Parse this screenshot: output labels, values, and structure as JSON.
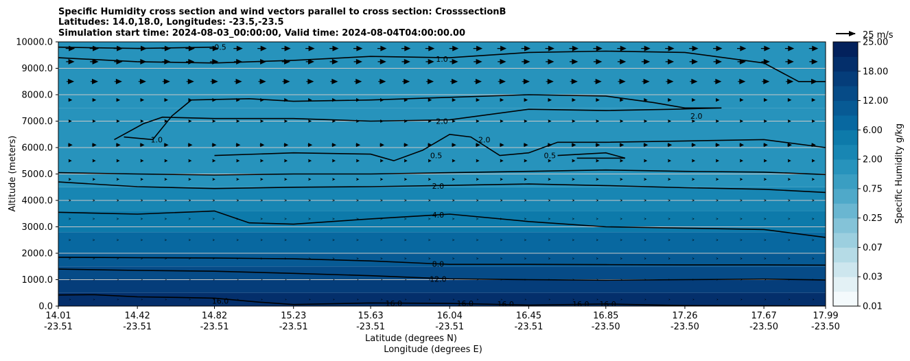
{
  "chart_data": {
    "type": "contourf",
    "title_lines": [
      "Specific Humidity cross section and wind vectors parallel to cross section: CrosssectionB",
      "Latitudes: 14.0,18.0, Longitudes: -23.5,-23.5",
      "Simulation start time: 2024-08-03_00:00:00, Valid time: 2024-08-04T04:00:00.00"
    ],
    "ylabel": "Altitude (meters)",
    "xlabel_lat": "Latitude (degrees N)",
    "xlabel_lon": "Longitude (degrees E)",
    "ylim": [
      0,
      10000
    ],
    "y_ticks": [
      "0.0",
      "1000.0",
      "2000.0",
      "3000.0",
      "4000.0",
      "5000.0",
      "6000.0",
      "7000.0",
      "8000.0",
      "9000.0",
      "10000.0"
    ],
    "x_ticks_lat": [
      "14.01",
      "14.42",
      "14.82",
      "15.23",
      "15.63",
      "16.04",
      "16.45",
      "16.85",
      "17.26",
      "17.67",
      "17.99"
    ],
    "x_ticks_lon": [
      "-23.51",
      "-23.51",
      "-23.51",
      "-23.51",
      "-23.51",
      "-23.51",
      "-23.51",
      "-23.50",
      "-23.50",
      "-23.50",
      "-23.50"
    ],
    "colorbar": {
      "label": "Specific Humidity g/kg",
      "levels": [
        0.01,
        0.02,
        0.03,
        0.05,
        0.07,
        0.1,
        0.25,
        0.5,
        0.75,
        1.0,
        2.0,
        4.0,
        6.0,
        9.0,
        12.0,
        15.0,
        18.0,
        21.0,
        25.0
      ],
      "tick_labels": [
        "0.01",
        "0.03",
        "0.07",
        "0.25",
        "0.75",
        "2.00",
        "6.00",
        "12.00",
        "18.00",
        "25.00"
      ],
      "colors": [
        "#f4fafc",
        "#e3f1f5",
        "#cde6ee",
        "#b5dbe6",
        "#9ccfdf",
        "#84c3d8",
        "#6ab6d1",
        "#4fa9c9",
        "#3a9ec2",
        "#2793bc",
        "#1886b3",
        "#0d7aaa",
        "#0868a0",
        "#075a94",
        "#064b87",
        "#053d7a",
        "#042f6b",
        "#03215c"
      ]
    },
    "humidity_bands": [
      {
        "alt_bottom": 0,
        "alt_top": 500,
        "value": 18.0
      },
      {
        "alt_bottom": 500,
        "alt_top": 1000,
        "value": 15.0
      },
      {
        "alt_bottom": 1000,
        "alt_top": 1500,
        "value": 12.0
      },
      {
        "alt_bottom": 1500,
        "alt_top": 2000,
        "value": 9.0
      },
      {
        "alt_bottom": 2000,
        "alt_top": 2800,
        "value": 6.0
      },
      {
        "alt_bottom": 2800,
        "alt_top": 3600,
        "value": 4.0
      },
      {
        "alt_bottom": 3600,
        "alt_top": 4500,
        "value": 2.5
      },
      {
        "alt_bottom": 4500,
        "alt_top": 7500,
        "value": 1.5
      },
      {
        "alt_bottom": 7500,
        "alt_top": 10000,
        "value": 1.0
      }
    ],
    "contour_lines": [
      {
        "level": "16.0",
        "points": [
          [
            14.01,
            420
          ],
          [
            14.2,
            430
          ],
          [
            14.42,
            350
          ],
          [
            14.62,
            330
          ],
          [
            14.82,
            300
          ],
          [
            15.05,
            150
          ],
          [
            15.23,
            60
          ],
          [
            15.63,
            120
          ],
          [
            16.04,
            100
          ],
          [
            16.45,
            40
          ],
          [
            16.85,
            80
          ],
          [
            17.26,
            20
          ],
          [
            17.67,
            10
          ],
          [
            17.99,
            0
          ]
        ]
      },
      {
        "level": "12.0",
        "points": [
          [
            14.01,
            1400
          ],
          [
            14.42,
            1350
          ],
          [
            14.82,
            1320
          ],
          [
            15.23,
            1240
          ],
          [
            15.63,
            1150
          ],
          [
            16.04,
            1030
          ],
          [
            16.45,
            1000
          ],
          [
            16.85,
            980
          ],
          [
            17.26,
            1000
          ],
          [
            17.67,
            1020
          ],
          [
            17.99,
            990
          ]
        ]
      },
      {
        "level": "8.0",
        "points": [
          [
            14.01,
            1850
          ],
          [
            14.42,
            1830
          ],
          [
            14.82,
            1820
          ],
          [
            15.23,
            1790
          ],
          [
            15.63,
            1710
          ],
          [
            16.04,
            1580
          ],
          [
            16.45,
            1580
          ],
          [
            16.85,
            1570
          ],
          [
            17.26,
            1560
          ],
          [
            17.67,
            1560
          ],
          [
            17.99,
            1550
          ]
        ]
      },
      {
        "level": "4.0",
        "points": [
          [
            14.01,
            3550
          ],
          [
            14.42,
            3480
          ],
          [
            14.82,
            3600
          ],
          [
            15.0,
            3150
          ],
          [
            15.23,
            3100
          ],
          [
            15.63,
            3300
          ],
          [
            16.04,
            3480
          ],
          [
            16.45,
            3200
          ],
          [
            16.85,
            3000
          ],
          [
            17.26,
            2950
          ],
          [
            17.67,
            2900
          ],
          [
            17.99,
            2600
          ]
        ]
      },
      {
        "level": "2.0",
        "points": [
          [
            14.01,
            4700
          ],
          [
            14.42,
            4520
          ],
          [
            14.82,
            4450
          ],
          [
            15.23,
            4500
          ],
          [
            15.63,
            4520
          ],
          [
            16.04,
            4570
          ],
          [
            16.45,
            4620
          ],
          [
            16.85,
            4560
          ],
          [
            17.26,
            4480
          ],
          [
            17.67,
            4420
          ],
          [
            17.99,
            4300
          ]
        ]
      },
      {
        "level": "2.0",
        "points": [
          [
            14.01,
            5050
          ],
          [
            14.42,
            5000
          ],
          [
            14.82,
            4960
          ],
          [
            15.23,
            5000
          ],
          [
            15.63,
            5000
          ],
          [
            16.04,
            5050
          ],
          [
            16.45,
            5100
          ],
          [
            16.85,
            5150
          ],
          [
            17.26,
            5100
          ],
          [
            17.67,
            5070
          ],
          [
            17.99,
            4980
          ]
        ]
      },
      {
        "level": "2.0",
        "points": [
          [
            14.82,
            5700
          ],
          [
            15.23,
            5800
          ],
          [
            15.63,
            5750
          ],
          [
            15.75,
            5500
          ],
          [
            15.9,
            5900
          ],
          [
            16.04,
            6500
          ],
          [
            16.15,
            6400
          ],
          [
            16.3,
            5700
          ],
          [
            16.45,
            5800
          ],
          [
            16.6,
            6200
          ],
          [
            16.85,
            6200
          ],
          [
            17.26,
            6250
          ],
          [
            17.67,
            6300
          ],
          [
            17.99,
            6000
          ]
        ]
      },
      {
        "level": "2.0",
        "points": [
          [
            14.35,
            6400
          ],
          [
            14.5,
            6300
          ],
          [
            14.6,
            7200
          ],
          [
            14.7,
            7800
          ],
          [
            15.0,
            7850
          ],
          [
            15.23,
            7750
          ],
          [
            15.63,
            7800
          ],
          [
            16.04,
            7900
          ],
          [
            16.45,
            8000
          ],
          [
            16.85,
            7950
          ],
          [
            17.1,
            7700
          ],
          [
            17.26,
            7500
          ],
          [
            17.45,
            7500
          ],
          [
            17.2,
            7450
          ],
          [
            16.85,
            7400
          ],
          [
            16.45,
            7450
          ],
          [
            16.04,
            7050
          ],
          [
            15.63,
            7000
          ],
          [
            15.23,
            7100
          ],
          [
            14.82,
            7100
          ],
          [
            14.55,
            7150
          ],
          [
            14.45,
            6900
          ],
          [
            14.3,
            6300
          ]
        ]
      },
      {
        "level": "1.0",
        "points": [
          [
            14.01,
            9400
          ],
          [
            14.42,
            9250
          ],
          [
            14.82,
            9200
          ],
          [
            15.23,
            9300
          ],
          [
            15.63,
            9450
          ],
          [
            16.04,
            9400
          ],
          [
            16.45,
            9600
          ],
          [
            16.85,
            9650
          ],
          [
            17.26,
            9600
          ],
          [
            17.67,
            9200
          ],
          [
            17.85,
            8500
          ],
          [
            17.99,
            8500
          ]
        ]
      },
      {
        "level": "0.5",
        "points": [
          [
            14.01,
            9800
          ],
          [
            14.42,
            9750
          ],
          [
            14.82,
            9800
          ]
        ]
      },
      {
        "level": "0.5",
        "points": [
          [
            16.6,
            5700
          ],
          [
            16.85,
            5800
          ],
          [
            16.95,
            5600
          ],
          [
            16.7,
            5600
          ]
        ]
      }
    ],
    "contour_label_positions": [
      {
        "text": "0.5",
        "lat": 14.85,
        "alt": 9800
      },
      {
        "text": "1.0",
        "lat": 16.0,
        "alt": 9350
      },
      {
        "text": "2.0",
        "lat": 16.0,
        "alt": 7000
      },
      {
        "text": "2.0",
        "lat": 16.22,
        "alt": 6300
      },
      {
        "text": "1.0",
        "lat": 14.52,
        "alt": 6300
      },
      {
        "text": "2.0",
        "lat": 17.32,
        "alt": 7200
      },
      {
        "text": "0.5",
        "lat": 15.97,
        "alt": 5700
      },
      {
        "text": "0.5",
        "lat": 16.56,
        "alt": 5700
      },
      {
        "text": "2.0",
        "lat": 15.98,
        "alt": 4550
      },
      {
        "text": "4.0",
        "lat": 15.98,
        "alt": 3450
      },
      {
        "text": "8.0",
        "lat": 15.98,
        "alt": 1600
      },
      {
        "text": "12.0",
        "lat": 15.98,
        "alt": 1020
      },
      {
        "text": "16.0",
        "lat": 14.85,
        "alt": 200
      },
      {
        "text": "16.0",
        "lat": 15.75,
        "alt": 100
      },
      {
        "text": "16.0",
        "lat": 16.12,
        "alt": 100
      },
      {
        "text": "16.0",
        "lat": 16.33,
        "alt": 80
      },
      {
        "text": "16.0",
        "lat": 16.72,
        "alt": 80
      },
      {
        "text": "16.0",
        "lat": 16.86,
        "alt": 80
      }
    ],
    "wind_reference": {
      "value": 25,
      "label": "25 m/s"
    },
    "wind_profile": [
      {
        "alt": 9750,
        "speed": 12
      },
      {
        "alt": 9250,
        "speed": 11
      },
      {
        "alt": 8500,
        "speed": 10
      },
      {
        "alt": 7800,
        "speed": 5
      },
      {
        "alt": 7000,
        "speed": 4
      },
      {
        "alt": 6100,
        "speed": 6
      },
      {
        "alt": 5500,
        "speed": 4
      },
      {
        "alt": 4800,
        "speed": 3
      },
      {
        "alt": 4000,
        "speed": 2
      },
      {
        "alt": 3300,
        "speed": 1.5
      },
      {
        "alt": 2500,
        "speed": 1.2
      },
      {
        "alt": 1800,
        "speed": 1
      },
      {
        "alt": 1000,
        "speed": 0.6
      },
      {
        "alt": 250,
        "speed": 0.4
      }
    ],
    "grid": "horizontal"
  }
}
